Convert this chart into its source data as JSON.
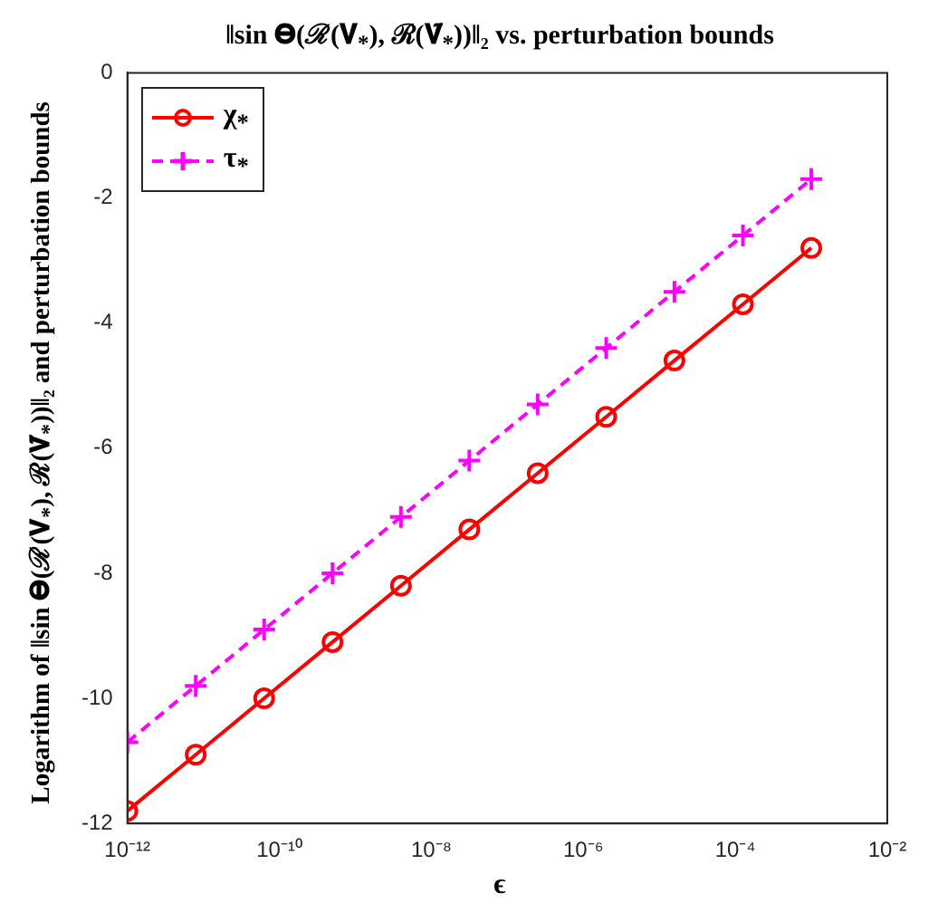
{
  "chart_data": {
    "type": "line",
    "title": "‖sin 𝚯(ℛ(𝐕$_{*}$), ℛ(𝐕̃$_{*}$))‖₂ vs. perturbation bounds",
    "xlabel": "ϵ",
    "ylabel": "Logarithm of ‖sin 𝚯(ℛ(𝐕$_{*}$), ℛ(𝐕̃$_{*}$))‖₂ and perturbation bounds",
    "x": [
      1e-12,
      7.94e-12,
      6.31e-11,
      5.01e-10,
      3.98e-09,
      3.16e-08,
      2.51e-07,
      2e-06,
      1.58e-05,
      0.000126,
      0.001
    ],
    "series": [
      {
        "name": "χ$_{*}$",
        "color": "#ff0000",
        "marker": "circle",
        "line_style": "solid",
        "values": [
          -11.8,
          -10.9,
          -10.0,
          -9.1,
          -8.2,
          -7.3,
          -6.4,
          -5.5,
          -4.6,
          -3.7,
          -2.8
        ]
      },
      {
        "name": "τ$_{*}$",
        "color": "#ff00ff",
        "marker": "cross",
        "line_style": "dashed",
        "values": [
          -10.7,
          -9.8,
          -8.9,
          -8.0,
          -7.1,
          -6.2,
          -5.3,
          -4.4,
          -3.5,
          -2.6,
          -1.7
        ]
      }
    ],
    "log": "x",
    "xlim": [
      1e-12,
      0.01
    ],
    "xticks": [
      {
        "value": 1e-12,
        "label": "10⁻¹²"
      },
      {
        "value": 1e-10,
        "label": "10⁻¹⁰"
      },
      {
        "value": 1e-08,
        "label": "10⁻⁸"
      },
      {
        "value": 1e-06,
        "label": "10⁻⁶"
      },
      {
        "value": 0.0001,
        "label": "10⁻⁴"
      },
      {
        "value": 0.01,
        "label": "10⁻²"
      }
    ],
    "ylim": [
      -12,
      0
    ],
    "yticks": [
      -12,
      -10,
      -8,
      -6,
      -4,
      -2,
      0
    ],
    "grid": false,
    "legend": "top left"
  }
}
